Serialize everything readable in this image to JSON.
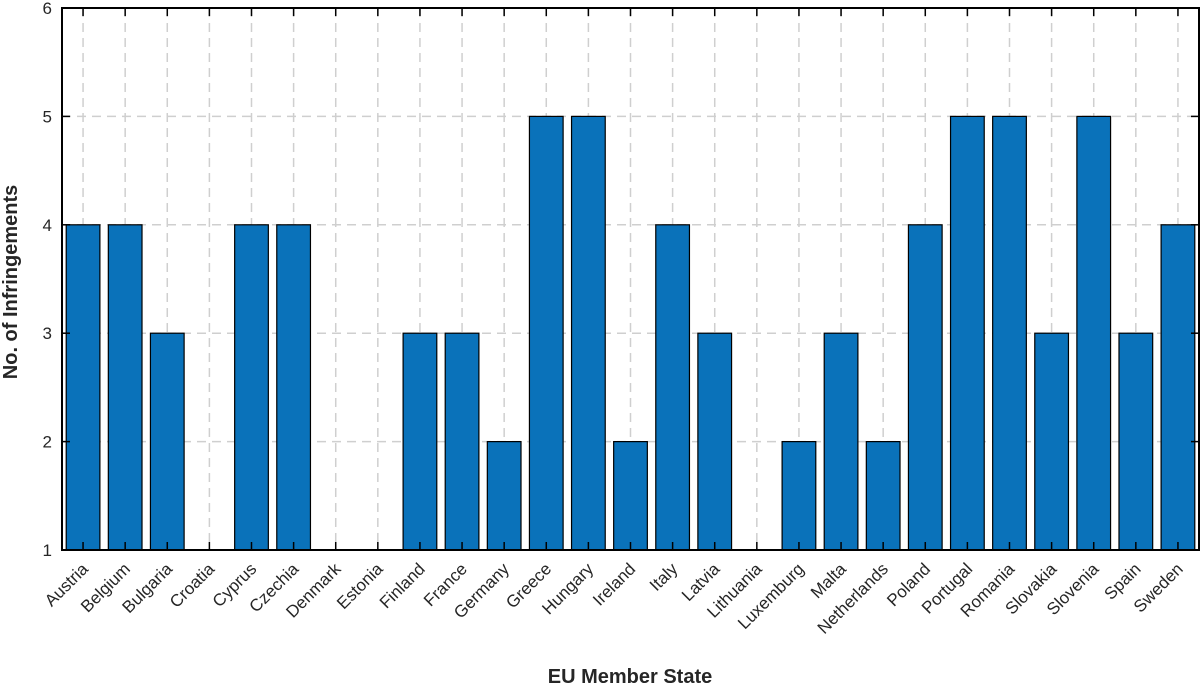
{
  "chart_data": {
    "type": "bar",
    "xlabel": "EU Member State",
    "ylabel": "No. of Infringements",
    "ylim": [
      1,
      6
    ],
    "yticks": [
      1,
      2,
      3,
      4,
      5,
      6
    ],
    "grid": true,
    "bar_color": "#0a72ba",
    "categories": [
      "Austria",
      "Belgium",
      "Bulgaria",
      "Croatia",
      "Cyprus",
      "Czechia",
      "Denmark",
      "Estonia",
      "Finland",
      "France",
      "Germany",
      "Greece",
      "Hungary",
      "Ireland",
      "Italy",
      "Latvia",
      "Lithuania",
      "Luxemburg",
      "Malta",
      "Netherlands",
      "Poland",
      "Portugal",
      "Romania",
      "Slovakia",
      "Slovenia",
      "Spain",
      "Sweden"
    ],
    "values": [
      4,
      4,
      3,
      1,
      4,
      4,
      1,
      1,
      3,
      3,
      2,
      5,
      5,
      2,
      4,
      3,
      1,
      2,
      3,
      2,
      4,
      5,
      5,
      3,
      5,
      3,
      4
    ]
  }
}
